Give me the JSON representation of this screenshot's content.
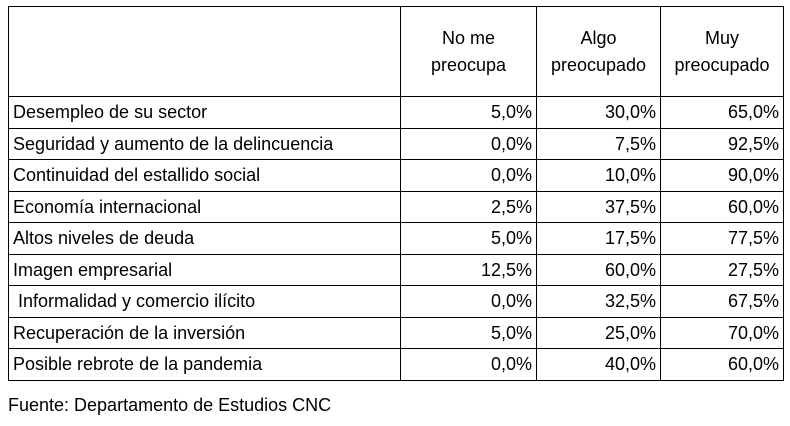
{
  "header": {
    "col1": [
      "No me",
      "preocupa"
    ],
    "col2": [
      "Algo",
      "preocupado"
    ],
    "col3": [
      "Muy",
      "preocupado"
    ]
  },
  "rows": [
    {
      "label": "Desempleo de su sector",
      "values": [
        "5,0%",
        "30,0%",
        "65,0%"
      ]
    },
    {
      "label": "Seguridad y aumento de la delincuencia",
      "values": [
        "0,0%",
        "7,5%",
        "92,5%"
      ]
    },
    {
      "label": "Continuidad del estallido social",
      "values": [
        "0,0%",
        "10,0%",
        "90,0%"
      ]
    },
    {
      "label": "Economía internacional",
      "values": [
        "2,5%",
        "37,5%",
        "60,0%"
      ]
    },
    {
      "label": "Altos niveles de deuda",
      "values": [
        "5,0%",
        "17,5%",
        "77,5%"
      ]
    },
    {
      "label": "Imagen empresarial",
      "values": [
        "12,5%",
        "60,0%",
        "27,5%"
      ]
    },
    {
      "label": " Informalidad y comercio ilícito",
      "values": [
        "0,0%",
        "32,5%",
        "67,5%"
      ]
    },
    {
      "label": "Recuperación de la inversión",
      "values": [
        "5,0%",
        "25,0%",
        "70,0%"
      ]
    },
    {
      "label": "Posible rebrote de la pandemia",
      "values": [
        "0,0%",
        "40,0%",
        "60,0%"
      ]
    }
  ],
  "source": "Fuente: Departamento de Estudios CNC"
}
